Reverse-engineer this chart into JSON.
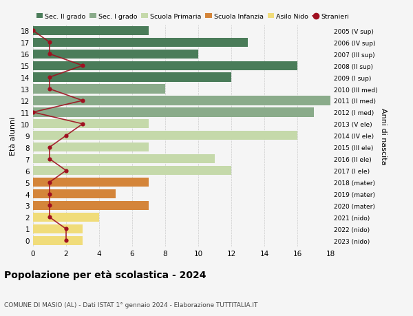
{
  "ages": [
    18,
    17,
    16,
    15,
    14,
    13,
    12,
    11,
    10,
    9,
    8,
    7,
    6,
    5,
    4,
    3,
    2,
    1,
    0
  ],
  "anni_nascita": [
    "2005 (V sup)",
    "2006 (IV sup)",
    "2007 (III sup)",
    "2008 (II sup)",
    "2009 (I sup)",
    "2010 (III med)",
    "2011 (II med)",
    "2012 (I med)",
    "2013 (V ele)",
    "2014 (IV ele)",
    "2015 (III ele)",
    "2016 (II ele)",
    "2017 (I ele)",
    "2018 (mater)",
    "2019 (mater)",
    "2020 (mater)",
    "2021 (nido)",
    "2022 (nido)",
    "2023 (nido)"
  ],
  "bar_values": [
    7,
    13,
    10,
    16,
    12,
    8,
    18,
    17,
    7,
    16,
    7,
    11,
    12,
    7,
    5,
    7,
    4,
    3,
    3
  ],
  "stranieri_values": [
    0,
    1,
    1,
    3,
    1,
    1,
    3,
    0,
    3,
    2,
    1,
    1,
    2,
    1,
    1,
    1,
    1,
    2,
    2
  ],
  "categories": {
    "sec2": [
      18,
      17,
      16,
      15,
      14
    ],
    "sec1": [
      13,
      12,
      11
    ],
    "primaria": [
      10,
      9,
      8,
      7,
      6
    ],
    "infanzia": [
      5,
      4,
      3
    ],
    "nido": [
      2,
      1,
      0
    ]
  },
  "colors": {
    "sec2": "#4a7c59",
    "sec1": "#8aab8a",
    "primaria": "#c5d9aa",
    "infanzia": "#d4853a",
    "nido": "#f0dc7a"
  },
  "stranieri_color": "#a01020",
  "title": "Popolazione per età scolastica - 2024",
  "subtitle": "COMUNE DI MASIO (AL) - Dati ISTAT 1° gennaio 2024 - Elaborazione TUTTITALIA.IT",
  "ylabel_left": "Età alunni",
  "ylabel_right": "Anni di nascita",
  "legend_labels": [
    "Sec. II grado",
    "Sec. I grado",
    "Scuola Primaria",
    "Scuola Infanzia",
    "Asilo Nido",
    "Stranieri"
  ],
  "xlim": [
    0,
    18
  ],
  "background_color": "#f5f5f5"
}
